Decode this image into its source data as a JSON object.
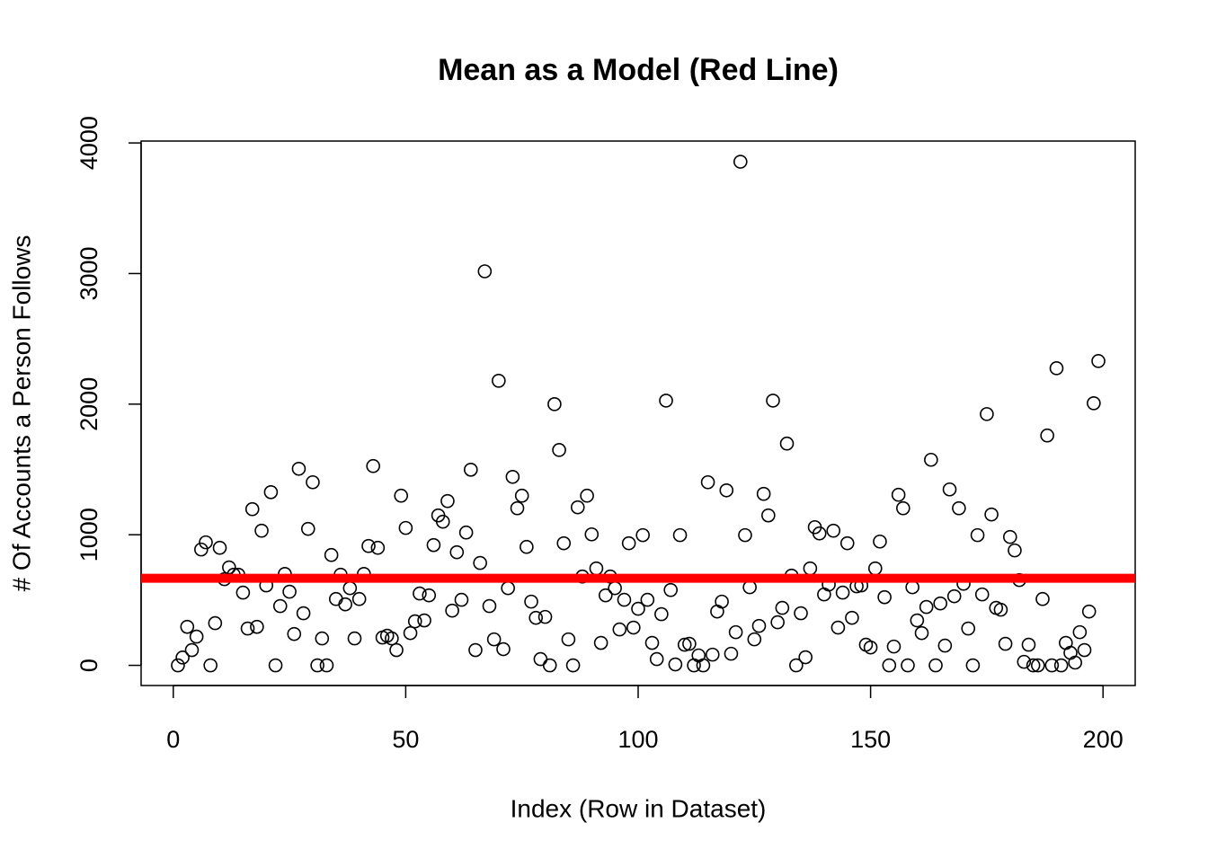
{
  "chart_data": {
    "type": "scatter",
    "title": "Mean as a Model (Red Line)",
    "xlabel": "Index (Row in Dataset)",
    "ylabel": "# Of Accounts a Person Follows",
    "xlim": [
      -6.92,
      206.92
    ],
    "ylim": [
      -154.4,
      4014.4
    ],
    "xticks": [
      0,
      50,
      100,
      150,
      200
    ],
    "yticks": [
      0,
      1000,
      2000,
      3000,
      4000
    ],
    "mean_line": {
      "value": 667,
      "color": "#ff0000"
    },
    "series": [
      {
        "color": "#000000",
        "x": [
          1,
          2,
          3,
          4,
          5,
          6,
          7,
          8,
          9,
          10,
          11,
          12,
          13,
          14,
          15,
          16,
          17,
          18,
          19,
          20,
          21,
          22,
          23,
          24,
          25,
          26,
          27,
          28,
          29,
          30,
          31,
          32,
          33,
          34,
          35,
          36,
          37,
          38,
          39,
          40,
          41,
          42,
          43,
          44,
          45,
          46,
          47,
          48,
          49,
          50,
          51,
          52,
          53,
          54,
          55,
          56,
          57,
          58,
          59,
          60,
          61,
          62,
          63,
          64,
          65,
          66,
          67,
          68,
          69,
          70,
          71,
          72,
          73,
          74,
          75,
          76,
          77,
          78,
          79,
          80,
          81,
          82,
          83,
          84,
          85,
          86,
          87,
          88,
          89,
          90,
          91,
          92,
          93,
          94,
          95,
          96,
          97,
          98,
          99,
          100,
          101,
          102,
          103,
          104,
          105,
          106,
          107,
          108,
          109,
          110,
          111,
          112,
          113,
          114,
          115,
          116,
          117,
          118,
          119,
          120,
          121,
          122,
          123,
          124,
          125,
          126,
          127,
          128,
          129,
          130,
          131,
          132,
          133,
          134,
          135,
          136,
          137,
          138,
          139,
          140,
          141,
          142,
          143,
          144,
          145,
          146,
          147,
          148,
          149,
          150,
          151,
          152,
          153,
          154,
          155,
          156,
          157,
          158,
          159,
          160,
          161,
          162,
          163,
          164,
          165,
          166,
          167,
          168,
          169,
          170,
          171,
          172,
          173,
          174,
          175,
          176,
          177,
          178,
          179,
          180,
          181,
          182,
          183,
          184,
          185,
          186,
          187,
          188,
          189,
          190,
          191,
          192,
          193,
          194,
          195,
          196,
          197,
          198,
          199
        ],
        "values": [
          0,
          60,
          295,
          117,
          220,
          887,
          942,
          0,
          323,
          900,
          660,
          750,
          694,
          694,
          557,
          282,
          1196,
          295,
          1031,
          612,
          1326,
          0,
          454,
          700,
          564,
          240,
          1505,
          399,
          1045,
          1402,
          0,
          206,
          0,
          845,
          508,
          694,
          467,
          591,
          206,
          508,
          700,
          914,
          1526,
          900,
          213,
          227,
          206,
          117,
          1299,
          1052,
          247,
          337,
          550,
          344,
          536,
          921,
          1148,
          1100,
          1258,
          419,
          866,
          502,
          1017,
          1498,
          117,
          784,
          3017,
          454,
          199,
          2179,
          124,
          591,
          1443,
          1203,
          1299,
          907,
          488,
          364,
          48,
          371,
          0,
          2000,
          1649,
          935,
          199,
          0,
          1210,
          680,
          1299,
          1003,
          742,
          172,
          536,
          680,
          591,
          275,
          502,
          935,
          289,
          433,
          997,
          502,
          172,
          48,
          392,
          2027,
          577,
          7,
          997,
          158,
          165,
          0,
          76,
          0,
          1402,
          82,
          412,
          488,
          1340,
          89,
          254,
          3856,
          997,
          598,
          199,
          302,
          1313,
          1148,
          2027,
          330,
          440,
          1698,
          687,
          0,
          399,
          62,
          742,
          1058,
          1010,
          543,
          619,
          1031,
          289,
          557,
          935,
          364,
          605,
          612,
          158,
          137,
          742,
          948,
          522,
          0,
          144,
          1306,
          1203,
          0,
          598,
          344,
          247,
          447,
          1574,
          0,
          474,
          151,
          1347,
          529,
          1203,
          625,
          282,
          0,
          997,
          543,
          1924,
          1155,
          440,
          426,
          165,
          983,
          880,
          653,
          27,
          158,
          0,
          0,
          508,
          1760,
          0,
          2275,
          0,
          172,
          96,
          21,
          254,
          117,
          412,
          2007,
          2330
        ]
      }
    ]
  }
}
